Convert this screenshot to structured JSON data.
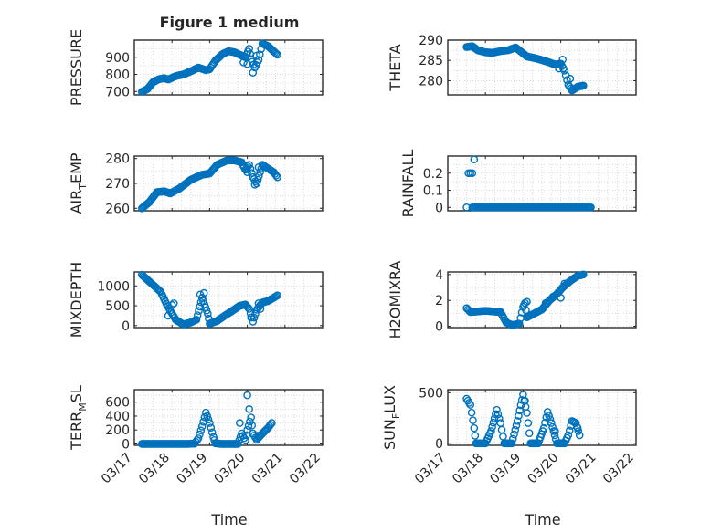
{
  "figure": {
    "title": "Figure 1 medium",
    "xlabel": "Time",
    "date_ticks": [
      "03/17",
      "03/18",
      "03/19",
      "03/20",
      "03/21",
      "03/22"
    ],
    "marker_color": "#0072BD"
  },
  "chart_data": [
    {
      "type": "scatter",
      "id": "pressure",
      "ylabel_main": "PRESSURE",
      "ylabel_sub": "",
      "ylabel_tail": "",
      "ylim": [
        680,
        1000
      ],
      "yticks": [
        700,
        800,
        900
      ],
      "ytick_labels": [
        "700",
        "800",
        "900"
      ],
      "xlim": [
        0,
        5
      ],
      "xticks": [
        0,
        1,
        2,
        3,
        4,
        5
      ],
      "anchors": [
        [
          0.2,
          698
        ],
        [
          0.35,
          715
        ],
        [
          0.5,
          755
        ],
        [
          0.65,
          772
        ],
        [
          0.8,
          778
        ],
        [
          0.9,
          770
        ],
        [
          1.1,
          790
        ],
        [
          1.3,
          800
        ],
        [
          1.5,
          818
        ],
        [
          1.7,
          840
        ],
        [
          1.9,
          825
        ],
        [
          2.0,
          830
        ],
        [
          2.15,
          880
        ],
        [
          2.35,
          920
        ],
        [
          2.5,
          935
        ],
        [
          2.65,
          930
        ],
        [
          2.8,
          915
        ],
        [
          2.95,
          900
        ],
        [
          3.05,
          950
        ],
        [
          3.1,
          890
        ],
        [
          3.2,
          840
        ],
        [
          3.3,
          885
        ],
        [
          3.4,
          980
        ],
        [
          3.55,
          965
        ],
        [
          3.7,
          935
        ],
        [
          3.8,
          915
        ]
      ],
      "extra": [
        [
          2.9,
          870
        ],
        [
          3.0,
          860
        ],
        [
          3.15,
          810
        ],
        [
          3.25,
          910
        ]
      ]
    },
    {
      "type": "scatter",
      "id": "theta",
      "ylabel_main": "THETA",
      "ylabel_sub": "",
      "ylabel_tail": "",
      "ylim": [
        276.5,
        290
      ],
      "yticks": [
        280,
        285,
        290
      ],
      "ytick_labels": [
        "280",
        "285",
        "290"
      ],
      "xlim": [
        0,
        5
      ],
      "xticks": [
        0,
        1,
        2,
        3,
        4,
        5
      ],
      "anchors": [
        [
          0.5,
          288.3
        ],
        [
          0.65,
          288.5
        ],
        [
          0.8,
          287.5
        ],
        [
          1.0,
          287.0
        ],
        [
          1.2,
          286.9
        ],
        [
          1.4,
          287.3
        ],
        [
          1.6,
          287.5
        ],
        [
          1.8,
          288.2
        ],
        [
          1.95,
          287.1
        ],
        [
          2.1,
          286.0
        ],
        [
          2.3,
          285.6
        ],
        [
          2.5,
          285.1
        ],
        [
          2.7,
          284.5
        ],
        [
          2.85,
          284.0
        ],
        [
          3.0,
          284.2
        ],
        [
          3.1,
          282.5
        ],
        [
          3.2,
          279.0
        ],
        [
          3.3,
          277.6
        ],
        [
          3.45,
          278.5
        ],
        [
          3.6,
          278.8
        ]
      ],
      "extra": [
        [
          2.95,
          283.0
        ],
        [
          3.05,
          285.2
        ],
        [
          3.25,
          280.5
        ]
      ]
    },
    {
      "type": "scatter",
      "id": "air_temp",
      "ylabel_main": "AIR",
      "ylabel_sub": "T",
      "ylabel_tail": "EMP",
      "ylim": [
        259,
        281
      ],
      "yticks": [
        260,
        270,
        280
      ],
      "ytick_labels": [
        "260",
        "270",
        "280"
      ],
      "xlim": [
        0,
        5
      ],
      "xticks": [
        0,
        1,
        2,
        3,
        4,
        5
      ],
      "anchors": [
        [
          0.2,
          260
        ],
        [
          0.4,
          262.5
        ],
        [
          0.6,
          266.5
        ],
        [
          0.8,
          266.8
        ],
        [
          0.95,
          266.0
        ],
        [
          1.2,
          268.0
        ],
        [
          1.5,
          271.5
        ],
        [
          1.8,
          273.5
        ],
        [
          2.0,
          274.0
        ],
        [
          2.2,
          277.5
        ],
        [
          2.45,
          279.2
        ],
        [
          2.65,
          279.3
        ],
        [
          2.85,
          278.5
        ],
        [
          2.95,
          275.5
        ],
        [
          3.05,
          277.5
        ],
        [
          3.15,
          272.5
        ],
        [
          3.25,
          270.0
        ],
        [
          3.4,
          277.5
        ],
        [
          3.55,
          276.0
        ],
        [
          3.7,
          274.5
        ],
        [
          3.8,
          272.5
        ]
      ],
      "extra": [
        [
          2.9,
          277.0
        ],
        [
          3.0,
          274.5
        ],
        [
          3.3,
          276.5
        ],
        [
          3.2,
          269.5
        ]
      ]
    },
    {
      "type": "scatter",
      "id": "rainfall",
      "ylabel_main": "RAINFALL",
      "ylabel_sub": "",
      "ylabel_tail": "",
      "ylim": [
        -0.02,
        0.3
      ],
      "yticks": [
        0,
        0.1,
        0.2
      ],
      "ytick_labels": [
        "0",
        "0.1",
        "0.2"
      ],
      "xlim": [
        0,
        5
      ],
      "xticks": [
        0,
        1,
        2,
        3,
        4,
        5
      ],
      "anchors": [
        [
          0.65,
          0
        ],
        [
          3.8,
          0
        ]
      ],
      "extra": [
        [
          0.5,
          0.0
        ],
        [
          0.55,
          0.2
        ],
        [
          0.6,
          0.2
        ],
        [
          0.65,
          0.2
        ],
        [
          0.7,
          0.28
        ]
      ]
    },
    {
      "type": "scatter",
      "id": "mixdepth",
      "ylabel_main": "MIXDEPTH",
      "ylabel_sub": "",
      "ylabel_tail": "",
      "ylim": [
        -50,
        1350
      ],
      "yticks": [
        0,
        500,
        1000
      ],
      "ytick_labels": [
        "0",
        "500",
        "1000"
      ],
      "xlim": [
        0,
        5
      ],
      "xticks": [
        0,
        1,
        2,
        3,
        4,
        5
      ],
      "anchors": [
        [
          0.2,
          1280
        ],
        [
          0.35,
          1150
        ],
        [
          0.55,
          980
        ],
        [
          0.7,
          850
        ],
        [
          0.85,
          550
        ],
        [
          0.95,
          380
        ],
        [
          1.1,
          150
        ],
        [
          1.3,
          30
        ],
        [
          1.5,
          80
        ],
        [
          1.65,
          150
        ],
        [
          1.8,
          700
        ],
        [
          1.95,
          300
        ],
        [
          2.0,
          50
        ],
        [
          2.2,
          120
        ],
        [
          2.4,
          250
        ],
        [
          2.6,
          370
        ],
        [
          2.8,
          500
        ],
        [
          2.95,
          530
        ],
        [
          3.05,
          420
        ],
        [
          3.15,
          100
        ],
        [
          3.25,
          400
        ],
        [
          3.4,
          580
        ],
        [
          3.55,
          620
        ],
        [
          3.7,
          700
        ],
        [
          3.8,
          760
        ]
      ],
      "extra": [
        [
          0.9,
          250
        ],
        [
          1.0,
          520
        ],
        [
          1.05,
          560
        ],
        [
          1.75,
          780
        ],
        [
          1.85,
          820
        ],
        [
          3.1,
          200
        ],
        [
          3.3,
          560
        ],
        [
          3.35,
          420
        ]
      ]
    },
    {
      "type": "scatter",
      "id": "h2omixra",
      "ylabel_main": "H2OMIXRA",
      "ylabel_sub": "",
      "ylabel_tail": "",
      "ylim": [
        -0.1,
        4.2
      ],
      "yticks": [
        0,
        2,
        4
      ],
      "ytick_labels": [
        "0",
        "2",
        "4"
      ],
      "xlim": [
        0,
        5
      ],
      "xticks": [
        0,
        1,
        2,
        3,
        4,
        5
      ],
      "anchors": [
        [
          0.5,
          1.4
        ],
        [
          0.6,
          1.1
        ],
        [
          0.8,
          1.15
        ],
        [
          1.0,
          1.2
        ],
        [
          1.2,
          1.15
        ],
        [
          1.4,
          1.1
        ],
        [
          1.55,
          0.3
        ],
        [
          1.7,
          0.1
        ],
        [
          1.9,
          0.2
        ],
        [
          2.0,
          1.5
        ],
        [
          2.05,
          1.8
        ],
        [
          2.1,
          0.7
        ],
        [
          2.3,
          1.0
        ],
        [
          2.5,
          1.3
        ],
        [
          2.7,
          2.0
        ],
        [
          2.9,
          2.5
        ],
        [
          3.05,
          3.0
        ],
        [
          3.25,
          3.5
        ],
        [
          3.45,
          3.9
        ],
        [
          3.6,
          4.0
        ]
      ],
      "extra": [
        [
          2.1,
          1.9
        ],
        [
          2.6,
          1.8
        ],
        [
          2.8,
          2.3
        ],
        [
          3.0,
          2.2
        ],
        [
          3.1,
          3.3
        ]
      ]
    },
    {
      "type": "scatter",
      "id": "terr_msl",
      "ylabel_main": "TERR",
      "ylabel_sub": "M",
      "ylabel_tail": "SL",
      "ylim": [
        -20,
        780
      ],
      "yticks": [
        0,
        200,
        400,
        600
      ],
      "ytick_labels": [
        "0",
        "200",
        "400",
        "600"
      ],
      "xlim": [
        0,
        5
      ],
      "xticks": [
        0,
        1,
        2,
        3,
        4,
        5
      ],
      "anchors": [
        [
          0.2,
          0
        ],
        [
          0.6,
          0
        ],
        [
          1.0,
          0
        ],
        [
          1.4,
          0
        ],
        [
          1.6,
          5
        ],
        [
          1.7,
          80
        ],
        [
          1.8,
          250
        ],
        [
          1.9,
          450
        ],
        [
          2.0,
          300
        ],
        [
          2.1,
          100
        ],
        [
          2.15,
          10
        ],
        [
          2.3,
          0
        ],
        [
          2.6,
          0
        ],
        [
          2.75,
          0
        ],
        [
          2.85,
          150
        ],
        [
          2.95,
          50
        ],
        [
          3.0,
          200
        ],
        [
          3.1,
          380
        ],
        [
          3.15,
          150
        ],
        [
          3.25,
          60
        ],
        [
          3.4,
          150
        ],
        [
          3.55,
          230
        ],
        [
          3.65,
          300
        ]
      ],
      "extra": [
        [
          3.0,
          700
        ],
        [
          3.05,
          500
        ],
        [
          2.8,
          300
        ],
        [
          3.3,
          120
        ]
      ]
    },
    {
      "type": "scatter",
      "id": "sun_flux",
      "ylabel_main": "SUN",
      "ylabel_sub": "F",
      "ylabel_tail": "LUX",
      "ylim": [
        -20,
        530
      ],
      "yticks": [
        0,
        500
      ],
      "ytick_labels": [
        "0",
        "500"
      ],
      "xlim": [
        0,
        5
      ],
      "xticks": [
        0,
        1,
        2,
        3,
        4,
        5
      ],
      "anchors": [
        [
          0.5,
          440
        ],
        [
          0.6,
          380
        ],
        [
          0.7,
          150
        ],
        [
          0.75,
          0
        ],
        [
          1.0,
          0
        ],
        [
          1.15,
          120
        ],
        [
          1.3,
          330
        ],
        [
          1.4,
          200
        ],
        [
          1.5,
          0
        ],
        [
          1.7,
          0
        ],
        [
          1.85,
          220
        ],
        [
          2.0,
          480
        ],
        [
          2.1,
          300
        ],
        [
          2.2,
          0
        ],
        [
          2.4,
          0
        ],
        [
          2.55,
          150
        ],
        [
          2.65,
          310
        ],
        [
          2.75,
          200
        ],
        [
          2.9,
          0
        ],
        [
          3.1,
          0
        ],
        [
          3.2,
          80
        ],
        [
          3.3,
          220
        ],
        [
          3.4,
          200
        ],
        [
          3.5,
          80
        ]
      ],
      "extra": [
        [
          2.05,
          420
        ],
        [
          2.85,
          120
        ],
        [
          3.45,
          150
        ]
      ]
    }
  ]
}
